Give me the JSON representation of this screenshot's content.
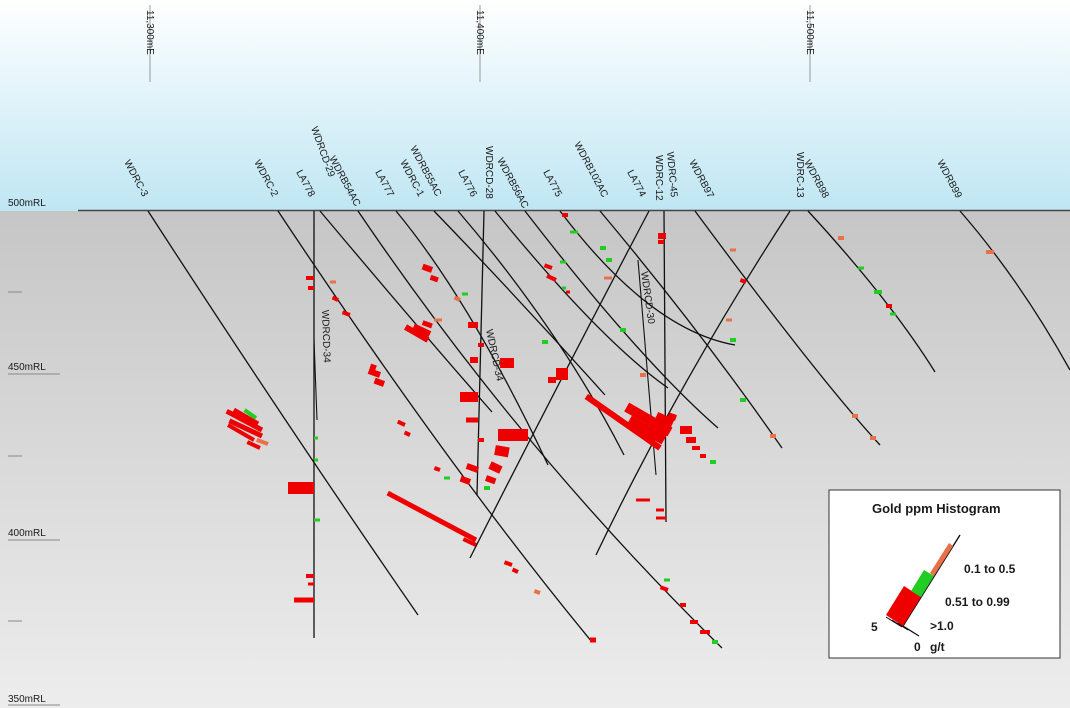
{
  "eastings": [
    "11,300mE",
    "11,400mE",
    "11,500mE"
  ],
  "rl_labels": [
    "500mRL",
    "450mRL",
    "400mRL",
    "350mRL"
  ],
  "holes": [
    "WDRC-3",
    "WDRC-2",
    "LA778",
    "WDRCD-29",
    "WDRB54AC",
    "LA777",
    "WDRC-1",
    "WDRB55AC",
    "LA776",
    "WDRCD-28",
    "WDRB56AC",
    "LA775",
    "WDRB102AC",
    "LA774",
    "WDRC-12",
    "WDRC-45",
    "WDRB97",
    "WDRC-13",
    "WDRB98",
    "WDRB99"
  ],
  "subsurface_labels": [
    "WDRCD-34",
    "WDRCD-34",
    "WDRCD-30"
  ],
  "legend": {
    "title": "Gold ppm Histogram",
    "classes": [
      {
        "label": "0.1 to 0.5",
        "color": "#e8714a"
      },
      {
        "label": "0.51 to 0.99",
        "color": "#22cc22"
      },
      {
        "label": ">1.0",
        "color": "#ee0000"
      }
    ],
    "scale_max": "5",
    "scale_zero": "0",
    "unit": "g/t"
  },
  "colors": {
    "low": "#e8714a",
    "mid": "#22cc22",
    "high": "#ee0000",
    "sky_top": "#ffffff",
    "sky_bottom": "#bfe6f3",
    "ground_top": "#c8c8c8",
    "ground_bottom": "#ececec"
  }
}
